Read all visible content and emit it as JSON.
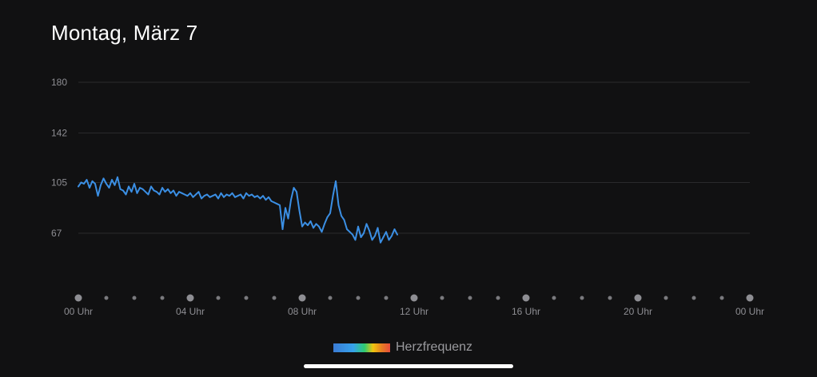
{
  "header": {
    "title": "Montag, März 7"
  },
  "legend": {
    "label": "Herzfrequenz"
  },
  "colors": {
    "background": "#111112",
    "line": "#3b8fe4",
    "grid": "#2a2a2c",
    "tick_text": "#8e8e93"
  },
  "chart_data": {
    "type": "line",
    "title": "",
    "xlabel": "",
    "ylabel": "",
    "ylim": [
      30,
      180
    ],
    "xlim": [
      0,
      24
    ],
    "y_ticks": [
      "180",
      "142",
      "105",
      "67"
    ],
    "x_ticks": [
      "00 Uhr",
      "04 Uhr",
      "08 Uhr",
      "12 Uhr",
      "16 Uhr",
      "20 Uhr",
      "00 Uhr"
    ],
    "grid": true,
    "legend": "bottom-center",
    "series": [
      {
        "name": "Herzfrequenz",
        "x": [
          0.0,
          0.1,
          0.2,
          0.3,
          0.4,
          0.5,
          0.6,
          0.7,
          0.8,
          0.9,
          1.0,
          1.1,
          1.2,
          1.3,
          1.4,
          1.5,
          1.6,
          1.7,
          1.8,
          1.9,
          2.0,
          2.1,
          2.2,
          2.3,
          2.4,
          2.5,
          2.6,
          2.7,
          2.8,
          2.9,
          3.0,
          3.1,
          3.2,
          3.3,
          3.4,
          3.5,
          3.6,
          3.7,
          3.8,
          3.9,
          4.0,
          4.1,
          4.2,
          4.3,
          4.4,
          4.5,
          4.6,
          4.7,
          4.8,
          4.9,
          5.0,
          5.1,
          5.2,
          5.3,
          5.4,
          5.5,
          5.6,
          5.7,
          5.8,
          5.9,
          6.0,
          6.1,
          6.2,
          6.3,
          6.4,
          6.5,
          6.6,
          6.7,
          6.8,
          6.9,
          7.0,
          7.1,
          7.2,
          7.3,
          7.4,
          7.5,
          7.6,
          7.7,
          7.8,
          7.9,
          8.0,
          8.1,
          8.2,
          8.3,
          8.4,
          8.5,
          8.6,
          8.7,
          8.8,
          8.9,
          9.0,
          9.1,
          9.2,
          9.3,
          9.4,
          9.5,
          9.6,
          9.7,
          9.8,
          9.9,
          10.0,
          10.1,
          10.2,
          10.3,
          10.4,
          10.5,
          10.6,
          10.7,
          10.8,
          10.9,
          11.0,
          11.1,
          11.2,
          11.3,
          11.4
        ],
        "values": [
          102,
          105,
          104,
          107,
          101,
          106,
          104,
          95,
          103,
          108,
          104,
          101,
          107,
          103,
          109,
          100,
          99,
          96,
          102,
          98,
          104,
          97,
          101,
          100,
          98,
          96,
          102,
          99,
          98,
          96,
          101,
          98,
          100,
          97,
          99,
          95,
          98,
          97,
          96,
          95,
          97,
          94,
          96,
          98,
          93,
          95,
          96,
          94,
          95,
          96,
          93,
          97,
          94,
          96,
          95,
          97,
          94,
          95,
          96,
          93,
          97,
          95,
          96,
          94,
          95,
          93,
          95,
          92,
          94,
          91,
          90,
          89,
          88,
          70,
          86,
          78,
          92,
          101,
          98,
          84,
          72,
          75,
          73,
          76,
          71,
          74,
          72,
          68,
          74,
          79,
          82,
          95,
          106,
          88,
          80,
          77,
          70,
          68,
          66,
          62,
          72,
          64,
          67,
          74,
          69,
          62,
          65,
          71,
          60,
          64,
          68,
          62,
          65,
          70,
          66
        ]
      }
    ]
  }
}
